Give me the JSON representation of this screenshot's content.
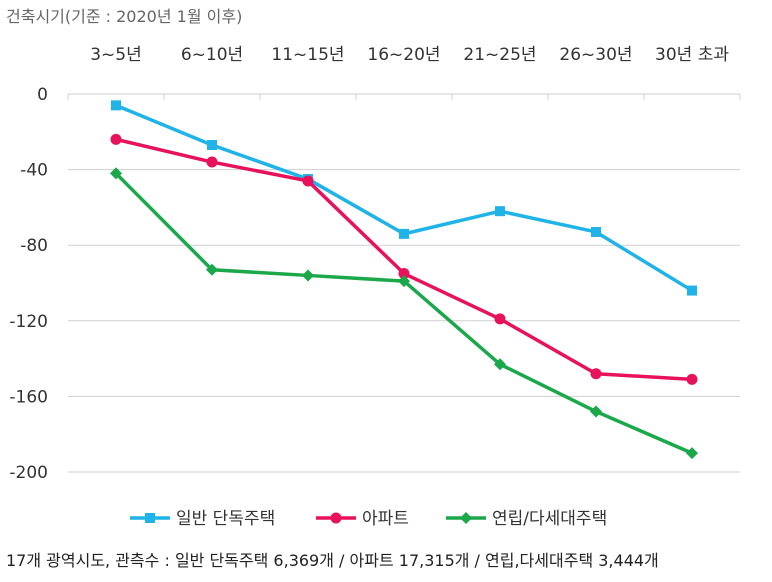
{
  "chart_data": {
    "type": "line",
    "title": "",
    "xlabel": "건축시기(기준 : 2020년 1월 이후)",
    "ylabel": "",
    "categories": [
      "3~5년",
      "6~10년",
      "11~15년",
      "16~20년",
      "21~25년",
      "26~30년",
      "30년 초과"
    ],
    "y_ticks": [
      "0",
      "-40",
      "-80",
      "-120",
      "-160",
      "-200"
    ],
    "ylim": [
      -200,
      0
    ],
    "x_axis_position": "top",
    "grid": "horizontal",
    "legend_position": "bottom",
    "series": [
      {
        "name": "일반 단독주택",
        "color": "#1fb3e8",
        "marker": "square",
        "values": [
          -6,
          -27,
          -45,
          -74,
          -62,
          -73,
          -104
        ]
      },
      {
        "name": "아파트",
        "color": "#e8115c",
        "marker": "circle",
        "values": [
          -24,
          -36,
          -46,
          -95,
          -119,
          -148,
          -151
        ]
      },
      {
        "name": "연립/다세대주택",
        "color": "#1aa84a",
        "marker": "diamond",
        "values": [
          -42,
          -93,
          -96,
          -99,
          -143,
          -168,
          -190
        ]
      }
    ],
    "footnote": "17개 광역시도, 관측수 : 일반 단독주택 6,369개 / 아파트 17,315개 / 연립,다세대주택 3,444개"
  }
}
